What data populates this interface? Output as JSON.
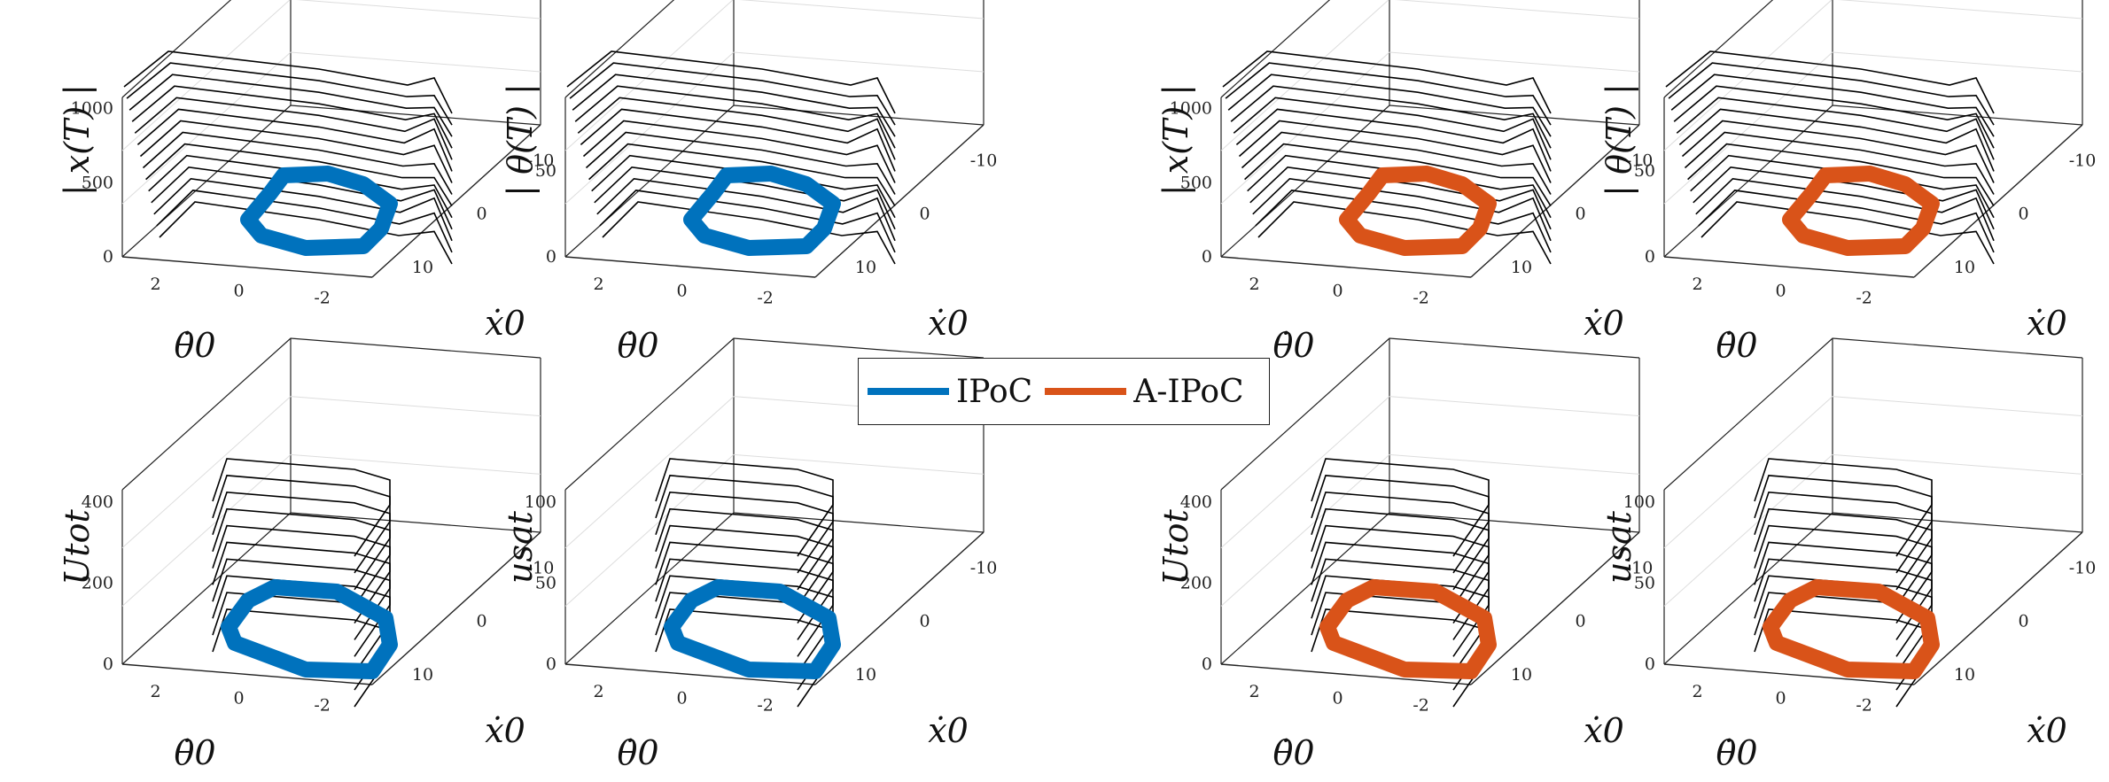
{
  "chart_data": {
    "type": "surface3d",
    "colors": {
      "IPoC": "#0072BD",
      "A-IPoC": "#D95319",
      "mesh": "#000000"
    },
    "legend": {
      "placement": "center",
      "entries": [
        "IPoC",
        "A-IPoC"
      ]
    },
    "shared_axes": {
      "xlabel": "θ̇0",
      "xticks": [
        "2",
        "0",
        "-2"
      ],
      "ylabel": "ẋ0",
      "yticks": [
        "-10",
        "0",
        "10"
      ]
    },
    "panels": [
      {
        "id": "p1",
        "method": "IPoC",
        "zlabel": "| x(T) |",
        "zticks": [
          "0",
          "500",
          "1000"
        ],
        "zlim": [
          0,
          1000
        ]
      },
      {
        "id": "p2",
        "method": "IPoC",
        "zlabel": "| θ(T) |",
        "zticks": [
          "0",
          "50"
        ],
        "zlim": [
          0,
          80
        ]
      },
      {
        "id": "p3",
        "method": "A-IPoC",
        "zlabel": "| x(T) |",
        "zticks": [
          "0",
          "500",
          "1000"
        ],
        "zlim": [
          0,
          1000
        ]
      },
      {
        "id": "p4",
        "method": "A-IPoC",
        "zlabel": "| θ(T) |",
        "zticks": [
          "0",
          "50"
        ],
        "zlim": [
          0,
          80
        ]
      },
      {
        "id": "p5",
        "method": "IPoC",
        "zlabel": "Utot",
        "zticks": [
          "0",
          "200",
          "400"
        ],
        "zlim": [
          0,
          500
        ]
      },
      {
        "id": "p6",
        "method": "IPoC",
        "zlabel": "usat",
        "zticks": [
          "0",
          "50",
          "100"
        ],
        "zlim": [
          0,
          120
        ]
      },
      {
        "id": "p7",
        "method": "A-IPoC",
        "zlabel": "Utot",
        "zticks": [
          "0",
          "200",
          "400"
        ],
        "zlim": [
          0,
          500
        ]
      },
      {
        "id": "p8",
        "method": "A-IPoC",
        "zlabel": "usat",
        "zticks": [
          "0",
          "50",
          "100"
        ],
        "zlim": [
          0,
          120
        ]
      }
    ]
  }
}
